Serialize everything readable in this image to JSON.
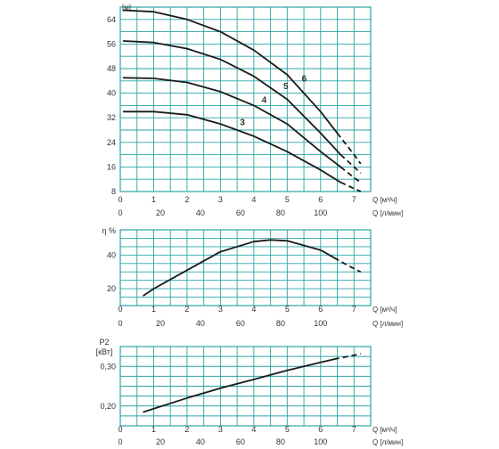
{
  "chart_data": [
    {
      "type": "line",
      "ylabel": "[м]",
      "xlabel_top": "Q [м³/ч]",
      "xlabel_bottom": "Q [л/мин]",
      "xlim": [
        0,
        7.5
      ],
      "ylim": [
        8,
        68
      ],
      "x_ticks": [
        "0",
        "1",
        "2",
        "3",
        "4",
        "5",
        "6",
        "7"
      ],
      "x_ticks_lmin": [
        "0",
        "20",
        "40",
        "60",
        "80",
        "100"
      ],
      "y_ticks": [
        "8",
        "16",
        "24",
        "32",
        "40",
        "48",
        "56",
        "64"
      ],
      "series": [
        {
          "name": "3",
          "solid": [
            [
              0.1,
              34
            ],
            [
              1,
              34
            ],
            [
              2,
              33
            ],
            [
              3,
              30
            ],
            [
              4,
              26
            ],
            [
              5,
              21
            ],
            [
              6,
              15
            ],
            [
              6.6,
              11
            ]
          ],
          "dashed": [
            [
              6.6,
              11
            ],
            [
              7,
              9
            ],
            [
              7.2,
              8
            ]
          ]
        },
        {
          "name": "4",
          "solid": [
            [
              0.1,
              45
            ],
            [
              1,
              44.8
            ],
            [
              2,
              43.5
            ],
            [
              3,
              40.5
            ],
            [
              4,
              36
            ],
            [
              5,
              30
            ],
            [
              6,
              21
            ],
            [
              6.6,
              16
            ]
          ],
          "dashed": [
            [
              6.6,
              16
            ],
            [
              7,
              12.5
            ],
            [
              7.2,
              11
            ]
          ]
        },
        {
          "name": "5",
          "solid": [
            [
              0.1,
              57
            ],
            [
              1,
              56.5
            ],
            [
              2,
              54.5
            ],
            [
              3,
              51
            ],
            [
              4,
              45.5
            ],
            [
              5,
              38
            ],
            [
              6,
              27
            ],
            [
              6.6,
              20
            ]
          ],
          "dashed": [
            [
              6.6,
              20
            ],
            [
              7,
              16
            ],
            [
              7.2,
              14
            ]
          ]
        },
        {
          "name": "6",
          "solid": [
            [
              0.1,
              67
            ],
            [
              1,
              66.5
            ],
            [
              2,
              64
            ],
            [
              3,
              60
            ],
            [
              4,
              54
            ],
            [
              5,
              46
            ],
            [
              6,
              34
            ],
            [
              6.5,
              27
            ]
          ],
          "dashed": [
            [
              6.5,
              27
            ],
            [
              7,
              20
            ],
            [
              7.2,
              17
            ]
          ]
        }
      ]
    },
    {
      "type": "line",
      "ylabel": "η %",
      "xlabel_top": "Q [м³/ч]",
      "xlabel_bottom": "Q [л/мин]",
      "xlim": [
        0,
        7.5
      ],
      "ylim": [
        10,
        55
      ],
      "x_ticks": [
        "0",
        "1",
        "2",
        "3",
        "4",
        "5",
        "6",
        "7"
      ],
      "x_ticks_lmin": [
        "0",
        "20",
        "40",
        "60",
        "80",
        "100"
      ],
      "y_ticks": [
        "20",
        "40"
      ],
      "series": [
        {
          "solid": [
            [
              0.7,
              16
            ],
            [
              1,
              20
            ],
            [
              2,
              31
            ],
            [
              3,
              42
            ],
            [
              4,
              48
            ],
            [
              4.5,
              49
            ],
            [
              5,
              48.5
            ],
            [
              6,
              43
            ],
            [
              6.4,
              38.5
            ]
          ],
          "dashed": [
            [
              6.4,
              38.5
            ],
            [
              6.8,
              34
            ],
            [
              7.2,
              30
            ]
          ]
        }
      ]
    },
    {
      "type": "line",
      "ylabel": "P2 [кВт]",
      "xlabel_top": "Q [м³/ч]",
      "xlabel_bottom": "Q [л/мин]",
      "xlim": [
        0,
        7.5
      ],
      "ylim": [
        0.15,
        0.35
      ],
      "x_ticks": [
        "0",
        "1",
        "2",
        "3",
        "4",
        "5",
        "6",
        "7"
      ],
      "x_ticks_lmin": [
        "0",
        "20",
        "40",
        "60",
        "80",
        "100"
      ],
      "y_ticks": [
        "0,20",
        "0,30"
      ],
      "series": [
        {
          "solid": [
            [
              0.7,
              0.185
            ],
            [
              2,
              0.22
            ],
            [
              3,
              0.245
            ],
            [
              4,
              0.267
            ],
            [
              5,
              0.29
            ],
            [
              6,
              0.31
            ],
            [
              6.4,
              0.318
            ]
          ],
          "dashed": [
            [
              6.4,
              0.318
            ],
            [
              7,
              0.328
            ],
            [
              7.2,
              0.332
            ]
          ]
        }
      ]
    }
  ]
}
